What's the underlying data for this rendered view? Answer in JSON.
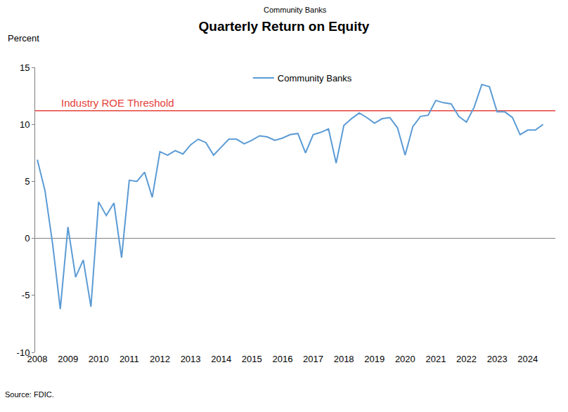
{
  "chart_data": {
    "type": "line",
    "subtitle": "Community Banks",
    "title": "Quarterly Return on Equity",
    "y_label": "Percent",
    "source": "Source: FDIC.",
    "categories": [
      "2008",
      null,
      null,
      null,
      "2009",
      null,
      null,
      null,
      "2010",
      null,
      null,
      null,
      "2011",
      null,
      null,
      null,
      "2012",
      null,
      null,
      null,
      "2013",
      null,
      null,
      null,
      "2014",
      null,
      null,
      null,
      "2015",
      null,
      null,
      null,
      "2016",
      null,
      null,
      null,
      "2017",
      null,
      null,
      null,
      "2018",
      null,
      null,
      null,
      "2019",
      null,
      null,
      null,
      "2020",
      null,
      null,
      null,
      "2021",
      null,
      null,
      null,
      "2022",
      null,
      null,
      null,
      "2023",
      null,
      null,
      null,
      "2024",
      null,
      null
    ],
    "series": [
      {
        "name": "Community Banks",
        "color": "#5b9bd5",
        "values": [
          6.9,
          4.2,
          -0.5,
          -6.2,
          1.0,
          -3.4,
          -1.9,
          -6.0,
          3.2,
          2.0,
          3.1,
          -1.7,
          5.1,
          5.0,
          5.8,
          3.6,
          7.6,
          7.3,
          7.7,
          7.4,
          8.2,
          8.7,
          8.4,
          7.3,
          8.0,
          8.7,
          8.7,
          8.3,
          8.6,
          9.0,
          8.9,
          8.6,
          8.8,
          9.1,
          9.2,
          7.5,
          9.1,
          9.3,
          9.6,
          6.6,
          9.9,
          10.5,
          11.0,
          10.6,
          10.1,
          10.5,
          10.6,
          9.7,
          7.3,
          9.8,
          10.7,
          10.8,
          12.1,
          11.9,
          11.8,
          10.7,
          10.2,
          11.5,
          13.5,
          13.3,
          11.1,
          11.1,
          10.6,
          9.1,
          9.5,
          9.5,
          10.0
        ]
      }
    ],
    "reference_lines": [
      {
        "label": "Industry ROE Threshold",
        "value": 11.2,
        "color": "#e5423a"
      }
    ],
    "ylim": [
      -10,
      15
    ],
    "yticks": [
      -10,
      -5,
      0,
      5,
      10,
      15
    ],
    "grid": false,
    "legend": "top"
  }
}
